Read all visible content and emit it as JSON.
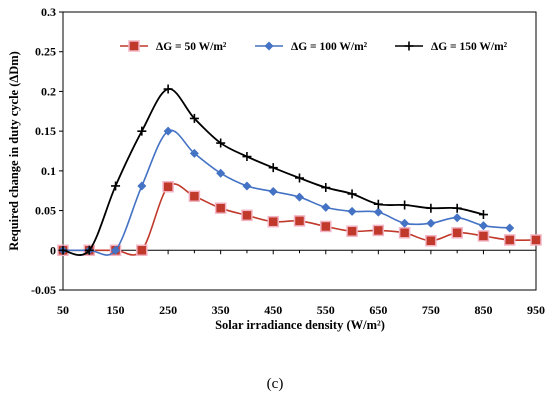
{
  "chart_data": {
    "type": "line",
    "xlabel": "Solar irradiance density  (W/m²)",
    "ylabel": "Required change in duty cycle  (ΔDm)",
    "xlim": [
      50,
      950
    ],
    "ylim": [
      -0.05,
      0.3
    ],
    "x_ticks": [
      "50",
      "150",
      "250",
      "350",
      "450",
      "550",
      "650",
      "750",
      "850",
      "950"
    ],
    "x_minor_ticks": [
      "100",
      "200",
      "300",
      "400",
      "500",
      "600",
      "700",
      "800",
      "900"
    ],
    "y_ticks": [
      "0.3",
      "0.25",
      "0.2",
      "0.15",
      "0.1",
      "0.05",
      "0",
      "-0.05"
    ],
    "grid": false,
    "legend_position": "top",
    "series": [
      {
        "name": "ΔG = 50 W/m²",
        "color": "#c0392b",
        "marker": "square",
        "x": [
          50,
          100,
          150,
          200,
          250,
          300,
          350,
          400,
          450,
          500,
          550,
          600,
          650,
          700,
          750,
          800,
          850,
          900,
          950
        ],
        "y": [
          0,
          0,
          0,
          0,
          0.08,
          0.068,
          0.053,
          0.044,
          0.036,
          0.037,
          0.03,
          0.024,
          0.025,
          0.022,
          0.012,
          0.022,
          0.018,
          0.013,
          0.013
        ]
      },
      {
        "name": "ΔG = 100 W/m²",
        "color": "#4472c4",
        "marker": "diamond",
        "x": [
          50,
          100,
          150,
          200,
          250,
          300,
          350,
          400,
          450,
          500,
          550,
          600,
          650,
          700,
          750,
          800,
          850,
          900
        ],
        "y": [
          0,
          0,
          0,
          0.081,
          0.15,
          0.122,
          0.097,
          0.081,
          0.074,
          0.067,
          0.054,
          0.049,
          0.048,
          0.034,
          0.034,
          0.041,
          0.031,
          0.028
        ]
      },
      {
        "name": "ΔG = 150 W/m²",
        "color": "#000000",
        "marker": "plus",
        "x": [
          50,
          100,
          150,
          200,
          250,
          300,
          350,
          400,
          450,
          500,
          550,
          600,
          650,
          700,
          750,
          800,
          850
        ],
        "y": [
          0,
          0,
          0.081,
          0.15,
          0.203,
          0.166,
          0.135,
          0.118,
          0.104,
          0.091,
          0.079,
          0.071,
          0.058,
          0.057,
          0.053,
          0.053,
          0.045
        ]
      }
    ]
  },
  "caption": "(c)"
}
